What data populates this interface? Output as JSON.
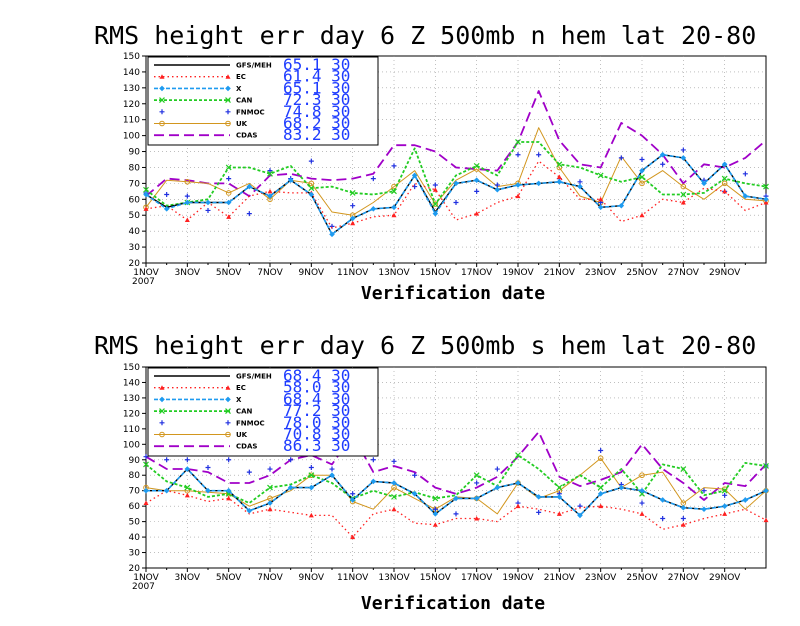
{
  "colors": {
    "GFS/MEH": "#000000",
    "EC": "#ff2020",
    "X": "#1e9bf0",
    "CAN": "#22cc22",
    "FNMOC": "#2030e0",
    "UK": "#d2961e",
    "CDAS": "#a000c8",
    "legend_value": "#1e3cff"
  },
  "chart_data": [
    {
      "type": "line",
      "title": "RMS height err   day 6  Z 500mb  n hem  lat 20-80",
      "xlabel": "Verification date",
      "ylabel": "",
      "ylim": [
        20,
        150
      ],
      "yticks": [
        20,
        30,
        40,
        50,
        60,
        70,
        80,
        90,
        100,
        110,
        120,
        130,
        140,
        150
      ],
      "xticks": [
        "1NOV",
        "3NOV",
        "5NOV",
        "7NOV",
        "9NOV",
        "11NOV",
        "13NOV",
        "15NOV",
        "17NOV",
        "19NOV",
        "21NOV",
        "23NOV",
        "25NOV",
        "27NOV",
        "29NOV"
      ],
      "xyear": "2007",
      "grid": true,
      "legend_position": "top-left",
      "series": [
        {
          "name": "GFS/MEH",
          "legend_value": "65.1 30",
          "values": [
            63,
            55,
            58,
            58,
            58,
            68,
            62,
            72,
            63,
            38,
            48,
            54,
            55,
            75,
            52,
            70,
            72,
            66,
            69,
            70,
            71,
            68,
            55,
            56,
            78,
            88,
            86,
            70,
            82,
            62,
            60
          ]
        },
        {
          "name": "EC",
          "legend_value": "61.4 30",
          "values": [
            54,
            56,
            47,
            58,
            49,
            62,
            65,
            64,
            64,
            42,
            45,
            49,
            50,
            70,
            66,
            47,
            51,
            58,
            62,
            84,
            74,
            60,
            60,
            46,
            50,
            60,
            58,
            67,
            65,
            53,
            58
          ]
        },
        {
          "name": "X",
          "legend_value": "65.1 30",
          "values": [
            63,
            54,
            58,
            58,
            58,
            68,
            62,
            72,
            63,
            38,
            48,
            54,
            55,
            75,
            51,
            70,
            72,
            66,
            69,
            70,
            71,
            68,
            55,
            56,
            78,
            88,
            86,
            70,
            82,
            62,
            60
          ]
        },
        {
          "name": "CAN",
          "legend_value": "72.3 30",
          "values": [
            66,
            56,
            58,
            60,
            80,
            80,
            76,
            81,
            67,
            68,
            64,
            63,
            65,
            92,
            57,
            75,
            81,
            75,
            96,
            96,
            82,
            80,
            75,
            71,
            74,
            63,
            63,
            64,
            73,
            70,
            68
          ]
        },
        {
          "name": "FNMOC",
          "legend_value": "74.8 30",
          "values": [
            64,
            63,
            62,
            53,
            73,
            51,
            78,
            73,
            84,
            43,
            56,
            73,
            81,
            68,
            69,
            58,
            65,
            69,
            88,
            88,
            73,
            71,
            58,
            86,
            85,
            82,
            91,
            72,
            65,
            76,
            62
          ]
        },
        {
          "name": "UK",
          "legend_value": "68.2 30",
          "values": [
            55,
            72,
            71,
            70,
            64,
            70,
            60,
            72,
            70,
            52,
            50,
            58,
            68,
            78,
            57,
            72,
            79,
            68,
            70,
            105,
            80,
            62,
            58,
            87,
            70,
            78,
            68,
            60,
            70,
            60,
            59
          ]
        },
        {
          "name": "CDAS",
          "legend_value": "83.2 30",
          "values": [
            62,
            73,
            72,
            70,
            70,
            62,
            75,
            76,
            73,
            72,
            73,
            76,
            94,
            94,
            90,
            80,
            79,
            78,
            96,
            128,
            97,
            82,
            80,
            108,
            100,
            88,
            70,
            82,
            80,
            86,
            97
          ]
        }
      ]
    },
    {
      "type": "line",
      "title": "RMS height err   day 6  Z 500mb  s hem  lat 20-80",
      "xlabel": "Verification date",
      "ylabel": "",
      "ylim": [
        20,
        150
      ],
      "yticks": [
        20,
        30,
        40,
        50,
        60,
        70,
        80,
        90,
        100,
        110,
        120,
        130,
        140,
        150
      ],
      "xticks": [
        "1NOV",
        "3NOV",
        "5NOV",
        "7NOV",
        "9NOV",
        "11NOV",
        "13NOV",
        "15NOV",
        "17NOV",
        "19NOV",
        "21NOV",
        "23NOV",
        "25NOV",
        "27NOV",
        "29NOV"
      ],
      "xyear": "2007",
      "grid": true,
      "legend_position": "top-left",
      "series": [
        {
          "name": "GFS/MEH",
          "legend_value": "68.4 30",
          "values": [
            70,
            70,
            84,
            70,
            70,
            57,
            62,
            72,
            72,
            80,
            64,
            76,
            75,
            68,
            55,
            65,
            65,
            72,
            75,
            66,
            66,
            54,
            68,
            72,
            70,
            64,
            59,
            58,
            60,
            64,
            70
          ]
        },
        {
          "name": "EC",
          "legend_value": "58.0 30",
          "values": [
            62,
            70,
            67,
            63,
            65,
            55,
            58,
            56,
            54,
            54,
            40,
            55,
            58,
            49,
            48,
            52,
            52,
            50,
            60,
            58,
            55,
            59,
            60,
            58,
            55,
            45,
            48,
            52,
            55,
            58,
            51
          ]
        },
        {
          "name": "X",
          "legend_value": "68.4 30",
          "values": [
            70,
            70,
            84,
            70,
            70,
            57,
            62,
            72,
            72,
            80,
            64,
            76,
            75,
            68,
            55,
            65,
            65,
            72,
            75,
            66,
            66,
            54,
            68,
            72,
            70,
            64,
            59,
            58,
            60,
            64,
            70
          ]
        },
        {
          "name": "CAN",
          "legend_value": "77.2 30",
          "values": [
            87,
            76,
            72,
            66,
            68,
            62,
            72,
            74,
            80,
            75,
            65,
            70,
            66,
            69,
            65,
            67,
            80,
            73,
            93,
            84,
            72,
            80,
            72,
            84,
            68,
            87,
            84,
            67,
            70,
            88,
            86
          ]
        },
        {
          "name": "FNMOC",
          "legend_value": "78.0 30",
          "values": [
            92,
            90,
            90,
            85,
            90,
            82,
            84,
            90,
            85,
            84,
            68,
            90,
            89,
            80,
            58,
            55,
            75,
            84,
            62,
            56,
            68,
            60,
            96,
            74,
            62,
            52,
            52,
            70,
            67,
            64,
            86
          ]
        },
        {
          "name": "UK",
          "legend_value": "70.8 30",
          "values": [
            72,
            70,
            70,
            69,
            68,
            60,
            65,
            70,
            80,
            80,
            63,
            58,
            72,
            65,
            58,
            66,
            65,
            55,
            75,
            65,
            70,
            80,
            91,
            72,
            80,
            82,
            62,
            72,
            71,
            58,
            70
          ]
        },
        {
          "name": "CDAS",
          "legend_value": "86.3 30",
          "values": [
            92,
            84,
            84,
            82,
            75,
            75,
            80,
            90,
            93,
            87,
            106,
            82,
            86,
            82,
            72,
            68,
            72,
            79,
            92,
            108,
            79,
            73,
            77,
            82,
            100,
            84,
            75,
            64,
            75,
            73,
            87
          ]
        }
      ]
    }
  ]
}
